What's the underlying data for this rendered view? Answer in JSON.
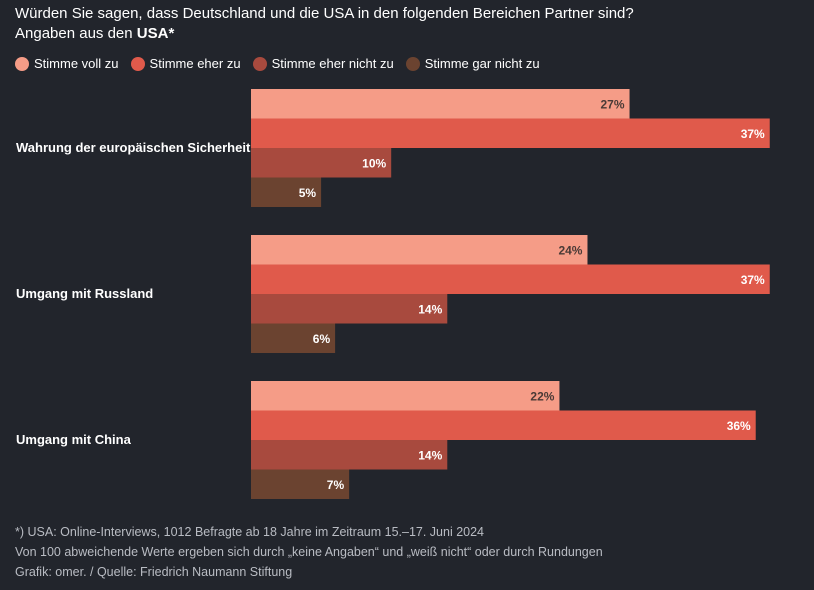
{
  "title": {
    "line1": "Würden Sie sagen, dass Deutschland und die USA in den folgenden Bereichen Partner sind?",
    "line2_prefix": "Angaben aus den ",
    "line2_bold": "USA*"
  },
  "colors": {
    "Stimme voll zu": "#f59c87",
    "Stimme eher zu": "#e05a4b",
    "Stimme eher nicht zu": "#a84a3e",
    "Stimme gar nicht zu": "#6b4330"
  },
  "chart_data": {
    "type": "bar",
    "orientation": "horizontal",
    "categories": [
      "Wahrung der europäischen Sicherheit",
      "Umgang mit Russland",
      "Umgang mit China"
    ],
    "series": [
      {
        "name": "Stimme voll zu",
        "values": [
          27,
          24,
          22
        ]
      },
      {
        "name": "Stimme eher zu",
        "values": [
          37,
          37,
          36
        ]
      },
      {
        "name": "Stimme eher nicht zu",
        "values": [
          10,
          14,
          14
        ]
      },
      {
        "name": "Stimme gar nicht zu",
        "values": [
          5,
          6,
          7
        ]
      }
    ],
    "unit": "%",
    "xlim": [
      0,
      37
    ]
  },
  "footer": {
    "line1": "*) USA: Online-Interviews, 1012 Befragte ab 18 Jahre im Zeitraum 15.–17. Juni 2024",
    "line2": "Von 100 abweichende Werte ergeben sich durch „keine Angaben“ und „weiß nicht“ oder durch Rundungen",
    "line3": "Grafik: omer. / Quelle: Friedrich Naumann Stiftung"
  }
}
